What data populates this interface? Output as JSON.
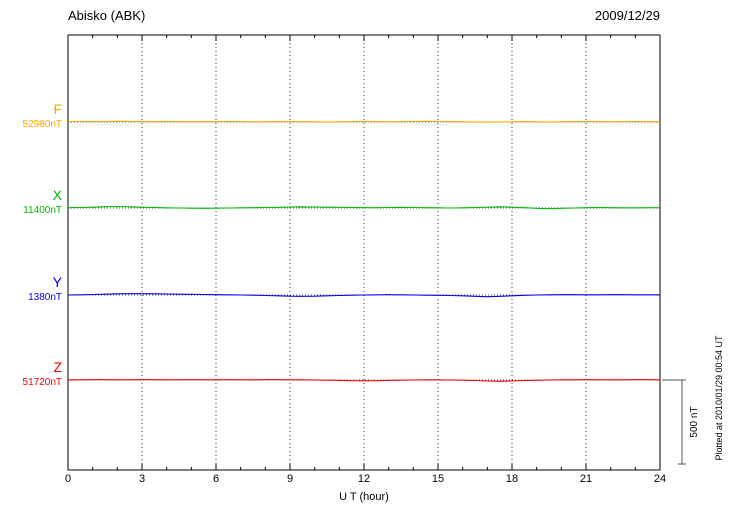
{
  "chart_data": {
    "type": "line",
    "title": "Abisko (ABK)",
    "date": "2009/12/29",
    "xlabel": "U T (hour)",
    "xlim": [
      0,
      24
    ],
    "x_ticks": [
      0,
      3,
      6,
      9,
      12,
      15,
      18,
      21,
      24
    ],
    "x_start": 0,
    "x_step": 0.5,
    "legend_position": "left-margin",
    "grid": "dotted",
    "scale_bar": {
      "label": "500 nT",
      "span_nT": 500
    },
    "plotted_at": "Plotted at 2010/01/29 00:54 UT",
    "series": [
      {
        "name": "F",
        "baseline_label": "52980nT",
        "baseline_nT": 52980,
        "color": "#ffa500",
        "offsets_nT": [
          3,
          3,
          2,
          3,
          4,
          3,
          2,
          2,
          3,
          2,
          1,
          2,
          2,
          3,
          2,
          1,
          1,
          2,
          3,
          2,
          1,
          0,
          1,
          2,
          3,
          2,
          1,
          2,
          3,
          4,
          3,
          2,
          1,
          0,
          -1,
          0,
          1,
          2,
          1,
          0,
          1,
          2,
          3,
          2,
          1,
          2,
          3,
          2,
          2
        ]
      },
      {
        "name": "X",
        "baseline_label": "11400nT",
        "baseline_nT": 11400,
        "color": "#00bb00",
        "offsets_nT": [
          2,
          3,
          5,
          8,
          9,
          7,
          5,
          3,
          1,
          0,
          -1,
          -2,
          -1,
          0,
          1,
          2,
          3,
          4,
          6,
          7,
          6,
          5,
          4,
          3,
          2,
          2,
          3,
          4,
          3,
          2,
          1,
          0,
          1,
          3,
          5,
          7,
          5,
          2,
          -2,
          -4,
          -2,
          0,
          2,
          3,
          2,
          1,
          1,
          2,
          2
        ]
      },
      {
        "name": "Y",
        "baseline_label": "1380nT",
        "baseline_nT": 1380,
        "color": "#0000ee",
        "offsets_nT": [
          0,
          1,
          3,
          5,
          7,
          8,
          8,
          7,
          6,
          5,
          4,
          3,
          2,
          1,
          0,
          -1,
          -3,
          -5,
          -7,
          -8,
          -7,
          -5,
          -3,
          -1,
          0,
          1,
          2,
          1,
          0,
          -1,
          -2,
          -3,
          -5,
          -8,
          -10,
          -8,
          -5,
          -2,
          0,
          1,
          2,
          2,
          1,
          1,
          2,
          2,
          1,
          1,
          1
        ]
      },
      {
        "name": "Z",
        "baseline_label": "51720nT",
        "baseline_nT": 51720,
        "color": "#ee0000",
        "offsets_nT": [
          1,
          1,
          2,
          2,
          1,
          1,
          2,
          2,
          1,
          1,
          2,
          1,
          1,
          2,
          1,
          1,
          2,
          2,
          1,
          1,
          0,
          -1,
          -2,
          -4,
          -5,
          -4,
          -2,
          -1,
          0,
          1,
          1,
          0,
          -1,
          -3,
          -6,
          -8,
          -6,
          -3,
          -1,
          0,
          1,
          1,
          2,
          1,
          1,
          1,
          2,
          2,
          1
        ]
      }
    ]
  }
}
